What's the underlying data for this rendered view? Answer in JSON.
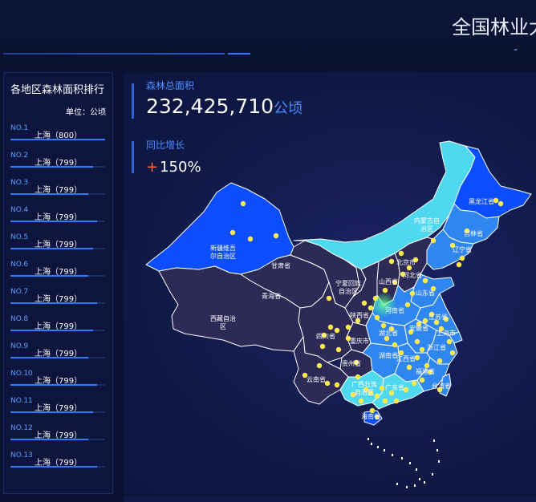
{
  "header": {
    "title": "全国林业大",
    "subtitle": "-"
  },
  "ranking": {
    "title": "各地区森林面积排行",
    "unit": "单位：公顷",
    "items": [
      {
        "no": "NO.1",
        "name": "上海（800）",
        "value": 800
      },
      {
        "no": "NO.2",
        "name": "上海（799）",
        "value": 799
      },
      {
        "no": "NO.3",
        "name": "上海（799）",
        "value": 799
      },
      {
        "no": "NO.4",
        "name": "上海（799）",
        "value": 799
      },
      {
        "no": "NO.5",
        "name": "上海（799）",
        "value": 799
      },
      {
        "no": "NO.6",
        "name": "上海（799）",
        "value": 799
      },
      {
        "no": "NO.7",
        "name": "上海（799）",
        "value": 799
      },
      {
        "no": "NO.8",
        "name": "上海（799）",
        "value": 799
      },
      {
        "no": "NO.9",
        "name": "上海（799）",
        "value": 799
      },
      {
        "no": "NO.10",
        "name": "上海（799）",
        "value": 799
      },
      {
        "no": "NO.11",
        "name": "上海（799）",
        "value": 799
      },
      {
        "no": "NO.12",
        "name": "上海（799）",
        "value": 799
      },
      {
        "no": "NO.13",
        "name": "上海（799）",
        "value": 799
      }
    ]
  },
  "stats": {
    "total_label": "森林总面积",
    "total_value": "232,425,710",
    "total_unit": "公顷",
    "growth_label": "同比增长",
    "growth_sign": "+",
    "growth_value": "150%"
  },
  "map": {
    "regions": [
      {
        "name": "新疆维吾尔自治区",
        "lines": [
          "新疆维吾",
          "尔自治区"
        ],
        "color": "#0b4dff"
      },
      {
        "name": "西藏自治区",
        "lines": [
          "西藏自治",
          "区"
        ],
        "color": "#2e2a57"
      },
      {
        "name": "青海省",
        "lines": [
          "青海省"
        ],
        "color": "#2e2a57"
      },
      {
        "name": "甘肃省",
        "lines": [
          "甘肃省"
        ],
        "color": "#2e2a57"
      },
      {
        "name": "内蒙古自治区",
        "lines": [
          "内蒙古自",
          "治区"
        ],
        "color": "#4fd9f0"
      },
      {
        "name": "黑龙江省",
        "lines": [
          "黑龙江省"
        ],
        "color": "#0b4dff"
      },
      {
        "name": "吉林省",
        "lines": [
          "吉林省"
        ],
        "color": "#2f86f0"
      },
      {
        "name": "辽宁省",
        "lines": [
          "辽宁省"
        ],
        "color": "#2f86f0"
      },
      {
        "name": "北京市",
        "lines": [
          "北京市"
        ],
        "color": "#2e2a57"
      },
      {
        "name": "河北省",
        "lines": [
          "河北省"
        ],
        "color": "#2e2a57"
      },
      {
        "name": "山西省",
        "lines": [
          "山西省"
        ],
        "color": "#2e2a57"
      },
      {
        "name": "宁夏回族自治区",
        "lines": [
          "宁夏回族",
          "自治区"
        ],
        "color": "#2e2a57"
      },
      {
        "name": "陕西省",
        "lines": [
          "陕西省"
        ],
        "color": "#2e2a57"
      },
      {
        "name": "河南省",
        "lines": [
          "河南省"
        ],
        "color": "#2f86f0"
      },
      {
        "name": "山东省",
        "lines": [
          "山东省"
        ],
        "color": "#2f86f0"
      },
      {
        "name": "四川省",
        "lines": [
          "四川省"
        ],
        "color": "#2e2a57"
      },
      {
        "name": "重庆市",
        "lines": [
          "重庆市"
        ],
        "color": "#2e2a57"
      },
      {
        "name": "湖北省",
        "lines": [
          "湖北省"
        ],
        "color": "#2f86f0"
      },
      {
        "name": "安徽省",
        "lines": [
          "安徽省"
        ],
        "color": "#2f86f0"
      },
      {
        "name": "江苏省",
        "lines": [
          "江苏省"
        ],
        "color": "#2f86f0"
      },
      {
        "name": "上海市",
        "lines": [
          "上海市"
        ],
        "color": "#2f86f0"
      },
      {
        "name": "浙江省",
        "lines": [
          "浙江省"
        ],
        "color": "#2f86f0"
      },
      {
        "name": "贵州省",
        "lines": [
          "贵州省"
        ],
        "color": "#2e2a57"
      },
      {
        "name": "湖南省",
        "lines": [
          "湖南省"
        ],
        "color": "#2f86f0"
      },
      {
        "name": "江西省",
        "lines": [
          "江西省"
        ],
        "color": "#2f86f0"
      },
      {
        "name": "福建省",
        "lines": [
          "福建省"
        ],
        "color": "#2f86f0"
      },
      {
        "name": "云南省",
        "lines": [
          "云南省"
        ],
        "color": "#2e2a57"
      },
      {
        "name": "广西壮族自治区",
        "lines": [
          "广西壮族",
          "自治区"
        ],
        "color": "#4fd9f0"
      },
      {
        "name": "广东省",
        "lines": [
          "广东省"
        ],
        "color": "#4fd9f0"
      },
      {
        "name": "台湾省",
        "lines": [
          "台湾省"
        ],
        "color": "#2f86f0"
      },
      {
        "name": "海南省",
        "lines": [
          "海南省"
        ],
        "color": "#0b4dff"
      }
    ]
  },
  "colors": {
    "accent": "#2f7bff",
    "plus": "#ff6b36",
    "marker": "#ffe94d",
    "label_blue": "#4c8dff"
  }
}
